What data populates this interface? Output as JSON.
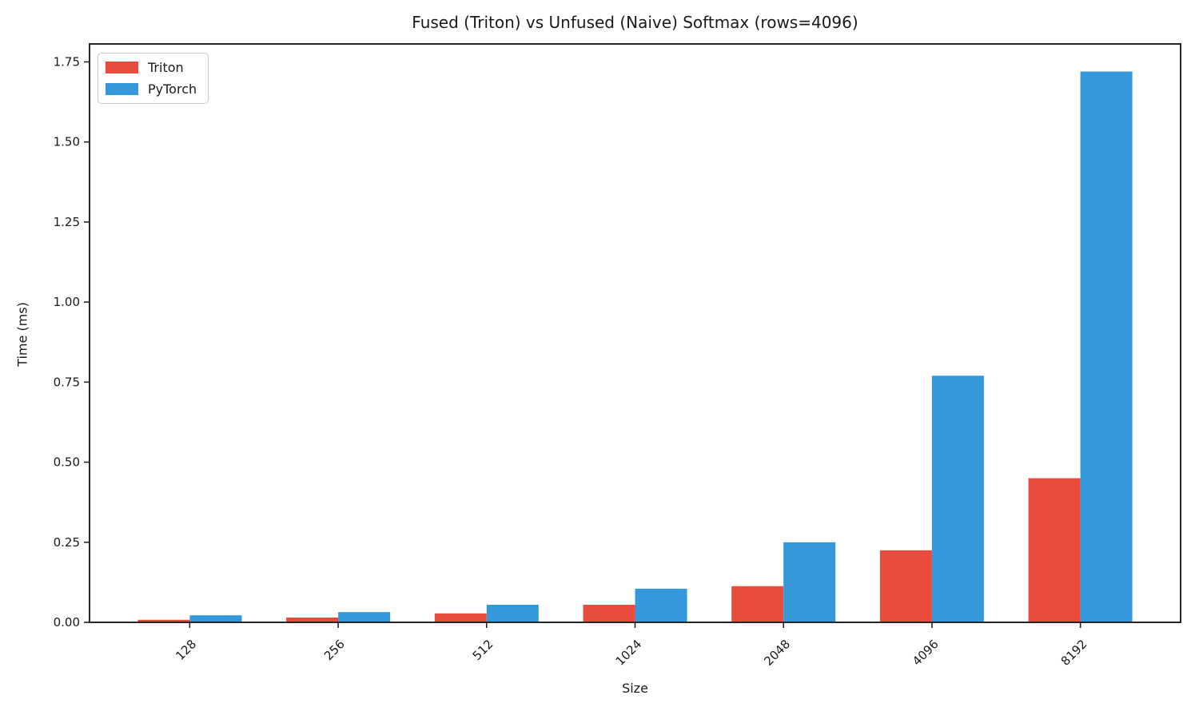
{
  "chart_data": {
    "type": "bar",
    "title": "Fused (Triton) vs Unfused (Naive) Softmax (rows=4096)",
    "xlabel": "Size",
    "ylabel": "Time (ms)",
    "categories": [
      "128",
      "256",
      "512",
      "1024",
      "2048",
      "4096",
      "8192"
    ],
    "series": [
      {
        "name": "Triton",
        "color": "#e74c3c",
        "values": [
          0.008,
          0.015,
          0.028,
          0.055,
          0.113,
          0.225,
          0.45
        ]
      },
      {
        "name": "PyTorch",
        "color": "#3498db",
        "values": [
          0.022,
          0.032,
          0.055,
          0.105,
          0.25,
          0.77,
          1.72
        ]
      }
    ],
    "ylim": [
      0,
      1.806
    ],
    "yticks": [
      0.0,
      0.25,
      0.5,
      0.75,
      1.0,
      1.25,
      1.5,
      1.75
    ],
    "ytick_labels": [
      "0.00",
      "0.25",
      "0.50",
      "0.75",
      "1.00",
      "1.25",
      "1.50",
      "1.75"
    ],
    "xtick_rotation": 45,
    "bar_width": 0.35,
    "grid": false,
    "legend_position": "upper left",
    "spine_color": "#262626"
  }
}
